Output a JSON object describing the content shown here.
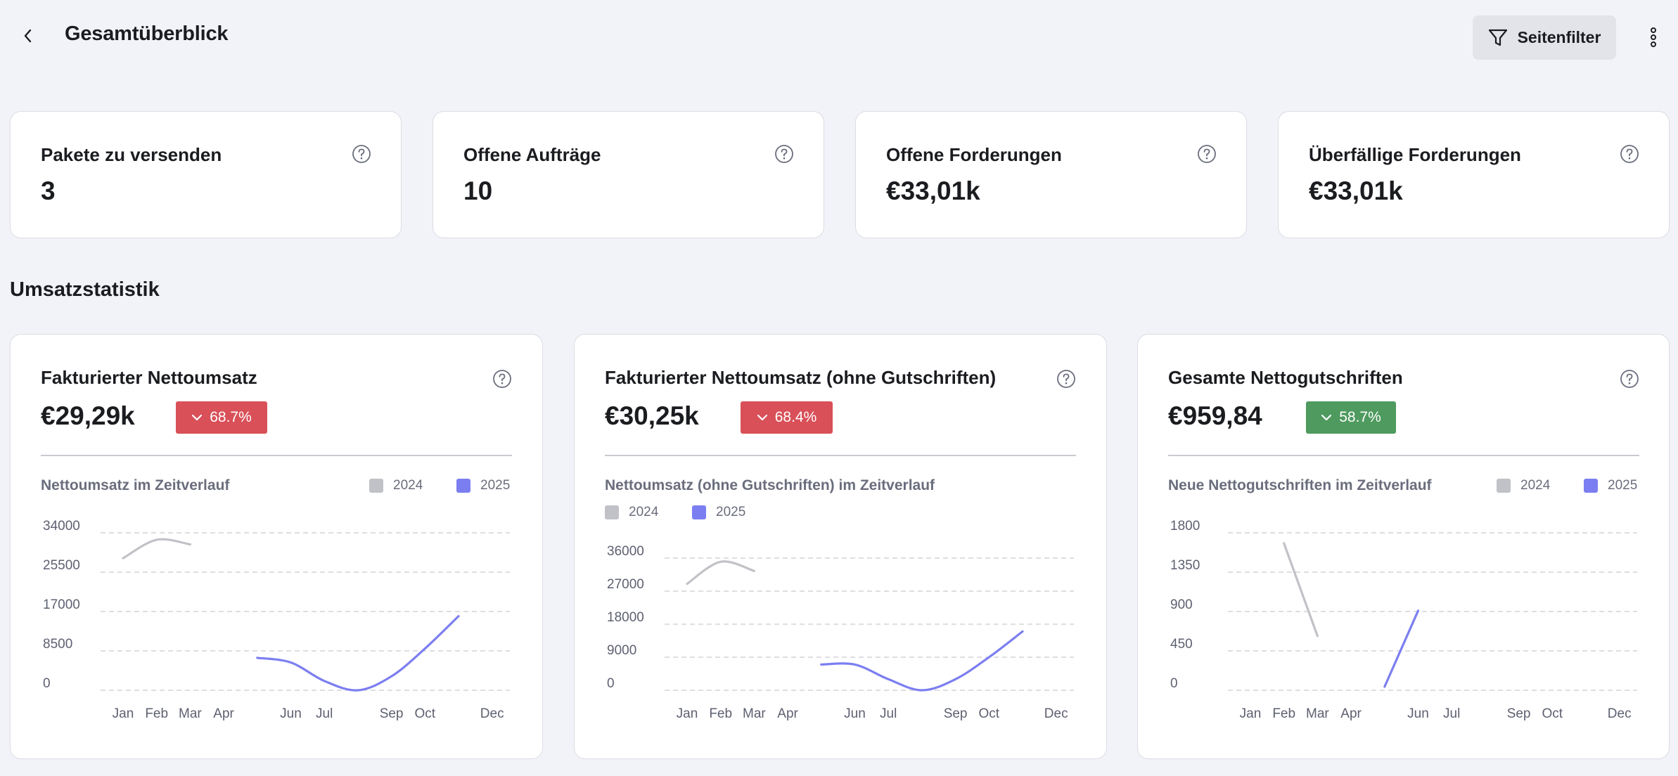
{
  "header": {
    "title": "Gesamtüberblick",
    "filter_label": "Seitenfilter",
    "back_icon": "chevron-left-icon",
    "filter_icon": "funnel-icon",
    "more_icon": "vertical-dots-icon"
  },
  "kpis": [
    {
      "label": "Pakete zu versenden",
      "value": "3"
    },
    {
      "label": "Offene Aufträge",
      "value": "10"
    },
    {
      "label": "Offene Forderungen",
      "value": "€33,01k"
    },
    {
      "label": "Überfällige Forderungen",
      "value": "€33,01k"
    }
  ],
  "section_title": "Umsatzstatistik",
  "colors": {
    "series_2024": "#c1c2c7",
    "series_2025": "#7b7ef0",
    "badge_red": "#d95058",
    "badge_green": "#4e9a5f"
  },
  "cards": [
    {
      "title": "Fakturierter Nettoumsatz",
      "value": "€29,29k",
      "badge": "68.7%",
      "badge_direction": "down",
      "chart_title": "Nettoumsatz im Zeitverlauf",
      "legend": [
        "2024",
        "2025"
      ]
    },
    {
      "title": "Fakturierter Nettoumsatz (ohne Gutschriften)",
      "value": "€30,25k",
      "badge": "68.4%",
      "badge_direction": "down",
      "chart_title": "Nettoumsatz (ohne Gutschriften) im Zeitverlauf",
      "legend": [
        "2024",
        "2025"
      ]
    },
    {
      "title": "Gesamte Nettogutschriften",
      "value": "€959,84",
      "badge": "58.7%",
      "badge_direction": "down",
      "chart_title": "Neue Nettogutschriften im Zeitverlauf",
      "legend": [
        "2024",
        "2025"
      ]
    }
  ],
  "chart_data": [
    {
      "type": "line",
      "title": "Nettoumsatz im Zeitverlauf",
      "x_ticks": [
        "Jan",
        "Feb",
        "Mar",
        "Apr",
        "Jun",
        "Jul",
        "Sep",
        "Oct",
        "Dec"
      ],
      "y_ticks": [
        "34000",
        "25500",
        "17000",
        "8500",
        "0"
      ],
      "ylim": [
        0,
        34000
      ],
      "grid": true,
      "legend_position": "top-right",
      "series": [
        {
          "name": "2024",
          "x": [
            "Jan",
            "Feb",
            "Mar"
          ],
          "y": [
            28500,
            32500,
            31500
          ]
        },
        {
          "name": "2025",
          "x": [
            "May",
            "Jun",
            "Jul",
            "Aug",
            "Sep",
            "Oct",
            "Nov"
          ],
          "y": [
            7000,
            6000,
            2000,
            0,
            3000,
            9000,
            16000
          ]
        }
      ]
    },
    {
      "type": "line",
      "title": "Nettoumsatz (ohne Gutschriften) im Zeitverlauf",
      "x_ticks": [
        "Jan",
        "Feb",
        "Mar",
        "Apr",
        "Jun",
        "Jul",
        "Sep",
        "Oct",
        "Dec"
      ],
      "y_ticks": [
        "36000",
        "27000",
        "18000",
        "9000",
        "0"
      ],
      "ylim": [
        0,
        36000
      ],
      "grid": true,
      "legend_position": "below-title",
      "series": [
        {
          "name": "2024",
          "x": [
            "Jan",
            "Feb",
            "Mar"
          ],
          "y": [
            29000,
            35000,
            32500
          ]
        },
        {
          "name": "2025",
          "x": [
            "May",
            "Jun",
            "Jul",
            "Aug",
            "Sep",
            "Oct",
            "Nov"
          ],
          "y": [
            7000,
            7000,
            3000,
            0,
            3000,
            9000,
            16000
          ]
        }
      ]
    },
    {
      "type": "line",
      "title": "Neue Nettogutschriften im Zeitverlauf",
      "x_ticks": [
        "Jan",
        "Feb",
        "Mar",
        "Apr",
        "Jun",
        "Jul",
        "Sep",
        "Oct",
        "Dec"
      ],
      "y_ticks": [
        "1800",
        "1350",
        "900",
        "450",
        "0"
      ],
      "ylim": [
        0,
        1800
      ],
      "grid": true,
      "legend_position": "top-right",
      "series": [
        {
          "name": "2024",
          "x": [
            "Feb",
            "Mar"
          ],
          "y": [
            1680,
            620
          ]
        },
        {
          "name": "2025",
          "x": [
            "May",
            "Jun"
          ],
          "y": [
            40,
            910
          ]
        }
      ]
    }
  ]
}
